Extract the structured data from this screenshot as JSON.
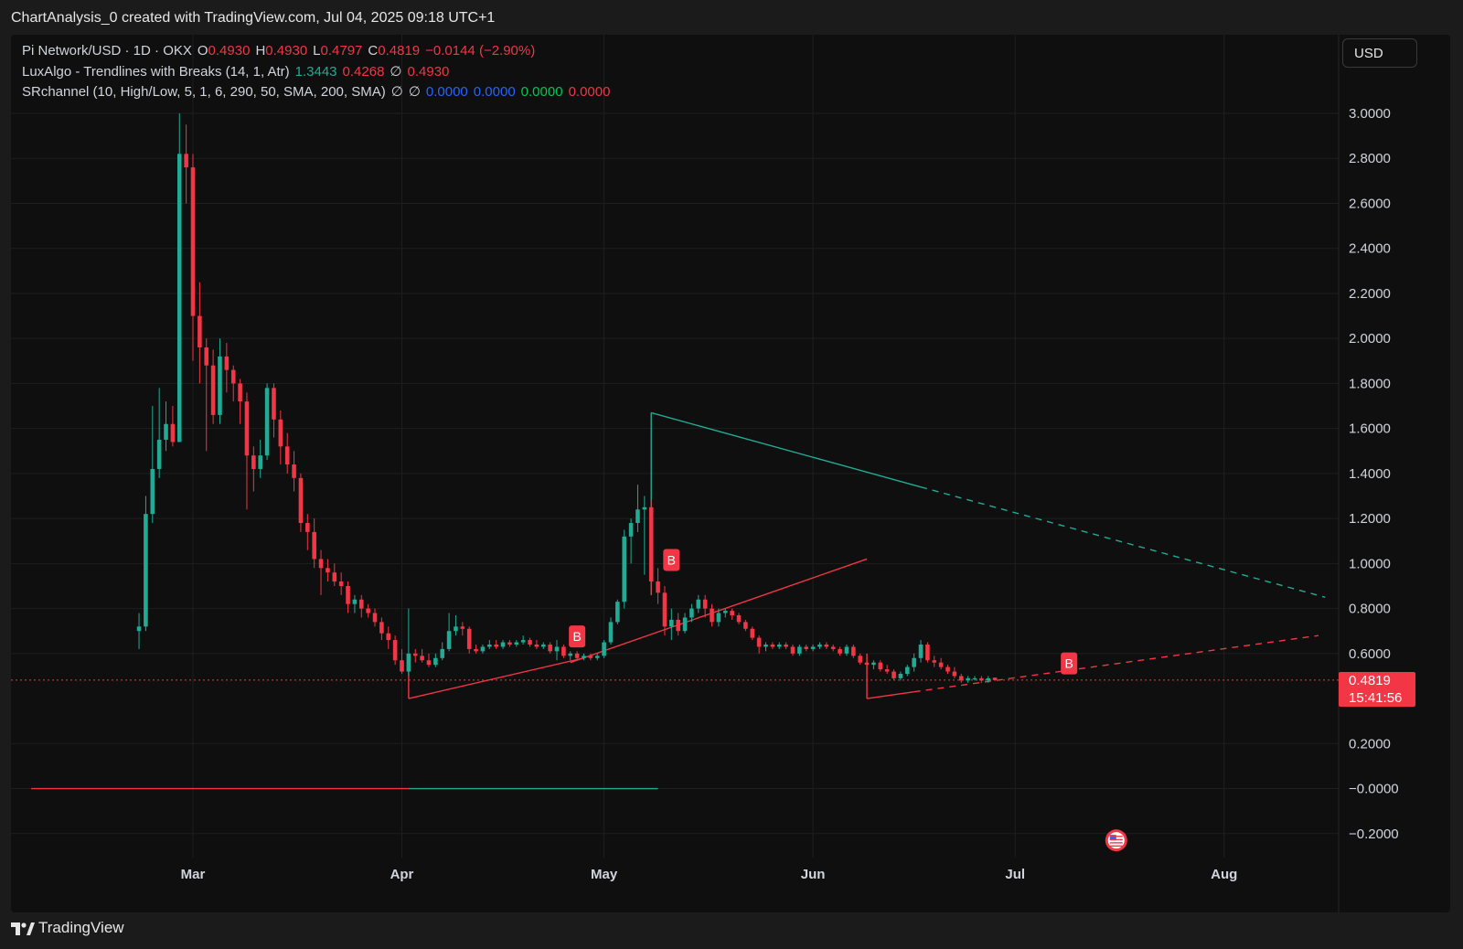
{
  "header": {
    "title": "ChartAnalysis_0 created with TradingView.com, Jul 04, 2025 09:18 UTC+1"
  },
  "legend": {
    "symbol": "Pi Network/USD · 1D · OKX",
    "o_label": "O",
    "o_value": "0.4930",
    "h_label": "H",
    "h_value": "0.4930",
    "l_label": "L",
    "l_value": "0.4797",
    "c_label": "C",
    "c_value": "0.4819",
    "change": "−0.0144 (−2.90%)",
    "ind1_name": "LuxAlgo - Trendlines with Breaks (14, 1, Atr)",
    "ind1_v1": "1.3443",
    "ind1_v2": "0.4268",
    "ind1_icon": "∅",
    "ind1_v3": "0.4930",
    "ind2_name": "SRchannel (10, High/Low, 5, 1, 6, 290, 50, SMA, 200, SMA)",
    "ind2_icon1": "∅",
    "ind2_icon2": "∅",
    "ind2_v1": "0.0000",
    "ind2_v2": "0.0000",
    "ind2_v3": "0.0000",
    "ind2_v4": "0.0000"
  },
  "currency_button": "USD",
  "price_tag": {
    "price": "0.4819",
    "countdown": "15:41:56"
  },
  "footer": {
    "brand": "TradingView",
    "logo_icon": "tradingview-logo-icon"
  },
  "colors": {
    "up": "#22ab94",
    "down": "#f23645",
    "bg": "#0f0f0f"
  },
  "chart_data": {
    "type": "candlestick",
    "y_axis_ticks": [
      "3.0000",
      "2.8000",
      "2.6000",
      "2.4000",
      "2.2000",
      "2.0000",
      "1.8000",
      "1.6000",
      "1.4000",
      "1.2000",
      "1.0000",
      "0.8000",
      "0.6000",
      "0.2000",
      "−0.0000",
      "−0.2000"
    ],
    "ylim": [
      -0.25,
      3.15
    ],
    "x_axis_ticks": [
      {
        "label": "Mar",
        "day": 8
      },
      {
        "label": "Apr",
        "day": 39
      },
      {
        "label": "May",
        "day": 69
      },
      {
        "label": "Jun",
        "day": 100
      },
      {
        "label": "Jul",
        "day": 130
      },
      {
        "label": "Aug",
        "day": 161
      }
    ],
    "x_range_days": [
      -19,
      178
    ],
    "start_date": "2025-02-20",
    "last_price": 0.4819,
    "candles": [
      [
        0.7,
        0.78,
        0.62,
        0.72
      ],
      [
        0.72,
        1.3,
        0.7,
        1.22
      ],
      [
        1.22,
        1.7,
        1.18,
        1.42
      ],
      [
        1.42,
        1.78,
        1.38,
        1.55
      ],
      [
        1.55,
        1.72,
        1.5,
        1.62
      ],
      [
        1.62,
        1.7,
        1.52,
        1.54
      ],
      [
        1.54,
        3.0,
        1.54,
        2.82
      ],
      [
        2.82,
        2.95,
        2.6,
        2.76
      ],
      [
        2.76,
        2.82,
        1.9,
        2.1
      ],
      [
        2.1,
        2.25,
        1.8,
        1.96
      ],
      [
        1.96,
        2.0,
        1.5,
        1.88
      ],
      [
        1.88,
        1.95,
        1.62,
        1.66
      ],
      [
        1.66,
        2.0,
        1.62,
        1.92
      ],
      [
        1.92,
        1.98,
        1.76,
        1.86
      ],
      [
        1.86,
        1.88,
        1.72,
        1.8
      ],
      [
        1.8,
        1.82,
        1.62,
        1.72
      ],
      [
        1.72,
        1.76,
        1.24,
        1.48
      ],
      [
        1.48,
        1.52,
        1.32,
        1.42
      ],
      [
        1.42,
        1.55,
        1.38,
        1.48
      ],
      [
        1.48,
        1.8,
        1.46,
        1.78
      ],
      [
        1.78,
        1.8,
        1.56,
        1.64
      ],
      [
        1.64,
        1.68,
        1.44,
        1.52
      ],
      [
        1.52,
        1.58,
        1.4,
        1.44
      ],
      [
        1.44,
        1.5,
        1.32,
        1.38
      ],
      [
        1.38,
        1.4,
        1.14,
        1.18
      ],
      [
        1.18,
        1.22,
        1.06,
        1.14
      ],
      [
        1.14,
        1.2,
        0.98,
        1.02
      ],
      [
        1.02,
        1.06,
        0.86,
        0.98
      ],
      [
        0.98,
        1.02,
        0.92,
        0.96
      ],
      [
        0.96,
        1.0,
        0.9,
        0.92
      ],
      [
        0.92,
        0.96,
        0.86,
        0.9
      ],
      [
        0.9,
        0.92,
        0.78,
        0.82
      ],
      [
        0.82,
        0.86,
        0.78,
        0.84
      ],
      [
        0.84,
        0.86,
        0.76,
        0.8
      ],
      [
        0.8,
        0.82,
        0.76,
        0.78
      ],
      [
        0.78,
        0.8,
        0.72,
        0.74
      ],
      [
        0.74,
        0.76,
        0.66,
        0.69
      ],
      [
        0.69,
        0.72,
        0.62,
        0.66
      ],
      [
        0.66,
        0.68,
        0.55,
        0.57
      ],
      [
        0.57,
        0.62,
        0.51,
        0.52
      ],
      [
        0.52,
        0.8,
        0.5,
        0.6
      ],
      [
        0.6,
        0.62,
        0.56,
        0.59
      ],
      [
        0.59,
        0.62,
        0.56,
        0.57
      ],
      [
        0.57,
        0.6,
        0.54,
        0.55
      ],
      [
        0.55,
        0.6,
        0.54,
        0.58
      ],
      [
        0.58,
        0.65,
        0.57,
        0.62
      ],
      [
        0.62,
        0.78,
        0.61,
        0.7
      ],
      [
        0.7,
        0.77,
        0.68,
        0.72
      ],
      [
        0.72,
        0.74,
        0.68,
        0.71
      ],
      [
        0.71,
        0.72,
        0.6,
        0.62
      ],
      [
        0.62,
        0.64,
        0.6,
        0.61
      ],
      [
        0.61,
        0.64,
        0.6,
        0.63
      ],
      [
        0.63,
        0.66,
        0.62,
        0.64
      ],
      [
        0.64,
        0.66,
        0.62,
        0.63
      ],
      [
        0.63,
        0.66,
        0.62,
        0.65
      ],
      [
        0.65,
        0.66,
        0.63,
        0.64
      ],
      [
        0.64,
        0.66,
        0.63,
        0.65
      ],
      [
        0.65,
        0.68,
        0.64,
        0.66
      ],
      [
        0.66,
        0.67,
        0.63,
        0.64
      ],
      [
        0.64,
        0.66,
        0.62,
        0.63
      ],
      [
        0.63,
        0.65,
        0.62,
        0.64
      ],
      [
        0.64,
        0.65,
        0.6,
        0.61
      ],
      [
        0.61,
        0.66,
        0.57,
        0.63
      ],
      [
        0.63,
        0.64,
        0.58,
        0.59
      ],
      [
        0.59,
        0.61,
        0.57,
        0.6
      ],
      [
        0.6,
        0.61,
        0.57,
        0.58
      ],
      [
        0.58,
        0.6,
        0.57,
        0.59
      ],
      [
        0.59,
        0.6,
        0.57,
        0.58
      ],
      [
        0.58,
        0.6,
        0.57,
        0.59
      ],
      [
        0.59,
        0.66,
        0.58,
        0.65
      ],
      [
        0.65,
        0.76,
        0.64,
        0.74
      ],
      [
        0.74,
        0.84,
        0.73,
        0.83
      ],
      [
        0.83,
        1.15,
        0.8,
        1.12
      ],
      [
        1.12,
        1.2,
        1.0,
        1.18
      ],
      [
        1.18,
        1.35,
        1.14,
        1.24
      ],
      [
        1.24,
        1.3,
        0.95,
        1.25
      ],
      [
        1.25,
        1.28,
        0.86,
        0.92
      ],
      [
        0.92,
        0.98,
        0.82,
        0.87
      ],
      [
        0.87,
        0.9,
        0.68,
        0.72
      ],
      [
        0.72,
        0.8,
        0.66,
        0.75
      ],
      [
        0.75,
        0.78,
        0.68,
        0.7
      ],
      [
        0.7,
        0.78,
        0.69,
        0.76
      ],
      [
        0.76,
        0.82,
        0.74,
        0.8
      ],
      [
        0.8,
        0.86,
        0.78,
        0.84
      ],
      [
        0.84,
        0.86,
        0.76,
        0.8
      ],
      [
        0.8,
        0.82,
        0.72,
        0.74
      ],
      [
        0.74,
        0.8,
        0.72,
        0.78
      ],
      [
        0.78,
        0.8,
        0.76,
        0.79
      ],
      [
        0.79,
        0.8,
        0.75,
        0.77
      ],
      [
        0.77,
        0.78,
        0.73,
        0.74
      ],
      [
        0.74,
        0.75,
        0.7,
        0.71
      ],
      [
        0.71,
        0.72,
        0.66,
        0.67
      ],
      [
        0.67,
        0.68,
        0.6,
        0.63
      ],
      [
        0.63,
        0.65,
        0.61,
        0.64
      ],
      [
        0.64,
        0.65,
        0.62,
        0.63
      ],
      [
        0.63,
        0.65,
        0.62,
        0.64
      ],
      [
        0.64,
        0.65,
        0.62,
        0.63
      ],
      [
        0.63,
        0.64,
        0.59,
        0.6
      ],
      [
        0.6,
        0.64,
        0.59,
        0.63
      ],
      [
        0.63,
        0.64,
        0.61,
        0.62
      ],
      [
        0.62,
        0.64,
        0.61,
        0.63
      ],
      [
        0.63,
        0.65,
        0.62,
        0.64
      ],
      [
        0.64,
        0.65,
        0.62,
        0.63
      ],
      [
        0.63,
        0.64,
        0.61,
        0.62
      ],
      [
        0.62,
        0.63,
        0.59,
        0.6
      ],
      [
        0.6,
        0.64,
        0.59,
        0.63
      ],
      [
        0.63,
        0.64,
        0.58,
        0.59
      ],
      [
        0.59,
        0.6,
        0.55,
        0.56
      ],
      [
        0.56,
        0.58,
        0.54,
        0.55
      ],
      [
        0.55,
        0.57,
        0.53,
        0.56
      ],
      [
        0.56,
        0.57,
        0.52,
        0.53
      ],
      [
        0.53,
        0.55,
        0.51,
        0.52
      ],
      [
        0.52,
        0.53,
        0.48,
        0.49
      ],
      [
        0.49,
        0.52,
        0.48,
        0.51
      ],
      [
        0.51,
        0.55,
        0.5,
        0.54
      ],
      [
        0.54,
        0.6,
        0.52,
        0.58
      ],
      [
        0.58,
        0.66,
        0.56,
        0.64
      ],
      [
        0.64,
        0.65,
        0.56,
        0.57
      ],
      [
        0.57,
        0.59,
        0.54,
        0.56
      ],
      [
        0.56,
        0.58,
        0.53,
        0.54
      ],
      [
        0.54,
        0.55,
        0.51,
        0.52
      ],
      [
        0.52,
        0.54,
        0.49,
        0.5
      ],
      [
        0.5,
        0.51,
        0.47,
        0.48
      ],
      [
        0.48,
        0.5,
        0.47,
        0.49
      ],
      [
        0.49,
        0.5,
        0.48,
        0.49
      ],
      [
        0.49,
        0.5,
        0.47,
        0.48
      ],
      [
        0.48,
        0.5,
        0.47,
        0.49
      ],
      [
        0.493,
        0.493,
        0.4797,
        0.4819
      ]
    ],
    "trendlines": [
      {
        "color": "#22ab94",
        "style": "solid",
        "from": [
          76,
          1.67
        ],
        "to": [
          76,
          0.86
        ]
      },
      {
        "color": "#22ab94",
        "style": "solid",
        "from": [
          76,
          1.67
        ],
        "to": [
          116,
          1.34
        ]
      },
      {
        "color": "#22ab94",
        "style": "dashed",
        "from": [
          116,
          1.34
        ],
        "to": [
          176,
          0.85
        ]
      },
      {
        "color": "#f23645",
        "style": "solid",
        "from": [
          40,
          0.4
        ],
        "to": [
          40,
          0.58
        ]
      },
      {
        "color": "#f23645",
        "style": "solid",
        "from": [
          40,
          0.4
        ],
        "to": [
          66,
          0.58
        ]
      },
      {
        "color": "#f23645",
        "style": "solid",
        "from": [
          64,
          0.56
        ],
        "to": [
          108,
          1.02
        ]
      },
      {
        "color": "#f23645",
        "style": "solid",
        "from": [
          108,
          0.4
        ],
        "to": [
          108,
          0.6
        ]
      },
      {
        "color": "#f23645",
        "style": "solid",
        "from": [
          108,
          0.4
        ],
        "to": [
          115,
          0.43
        ]
      },
      {
        "color": "#f23645",
        "style": "dashed",
        "from": [
          115,
          0.43
        ],
        "to": [
          175,
          0.68
        ]
      }
    ],
    "sr_lines": [
      {
        "color": "#f23645",
        "from": [
          -16,
          0.0
        ],
        "to": [
          40,
          0.0
        ]
      },
      {
        "color": "#22ab94",
        "from": [
          40,
          0.0
        ],
        "to": [
          77,
          0.0
        ]
      }
    ],
    "break_labels": [
      {
        "text": "B",
        "day": 65,
        "price": 0.68
      },
      {
        "text": "B",
        "day": 79,
        "price": 1.02
      },
      {
        "text": "B",
        "day": 138,
        "price": 0.56
      }
    ],
    "event_icon": {
      "name": "us-flag-icon",
      "day": 145,
      "price": -0.23
    }
  }
}
